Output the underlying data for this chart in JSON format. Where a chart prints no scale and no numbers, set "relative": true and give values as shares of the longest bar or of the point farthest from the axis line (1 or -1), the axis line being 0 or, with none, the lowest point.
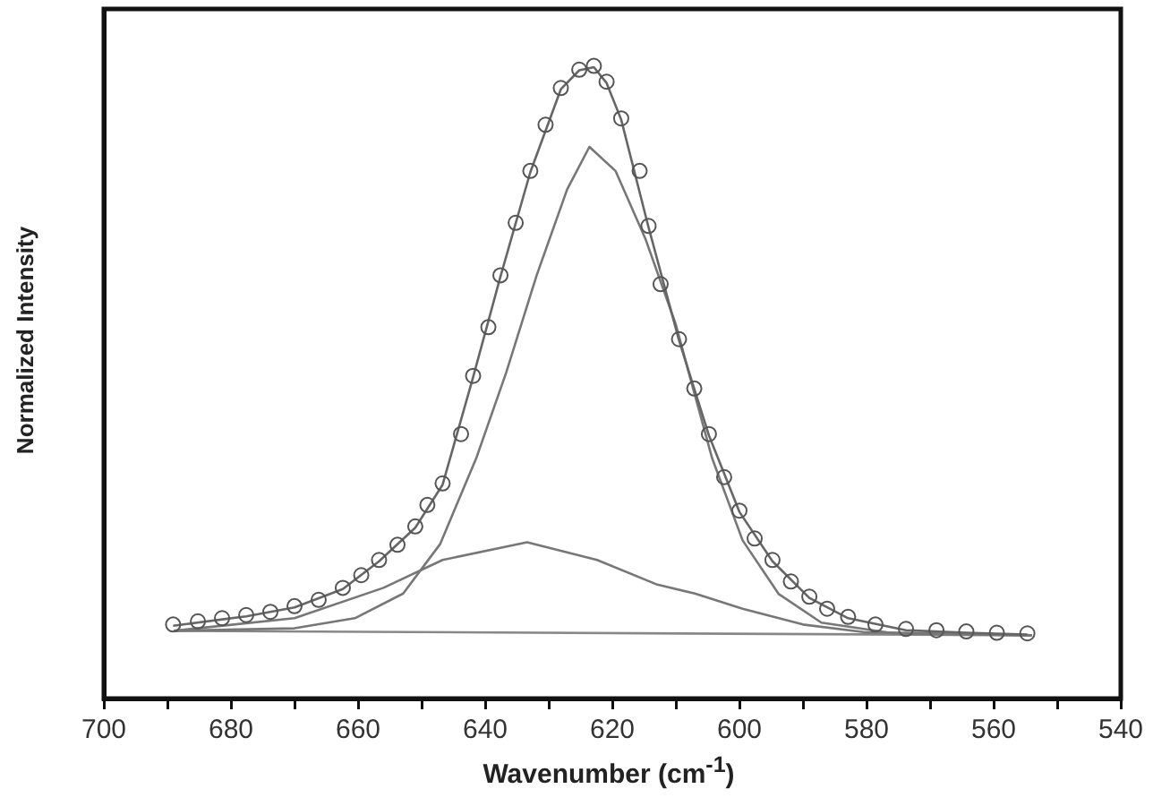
{
  "chart_data": {
    "type": "scatter",
    "xlabel": "Wavenumber (cm$^{-1}$)",
    "ylabel": "Normalized Intensity",
    "relative": true,
    "legend": false,
    "grid": false,
    "xlim": [
      700,
      540
    ],
    "xticks": [
      700,
      {
        "value": 690,
        "label": null
      },
      680,
      {
        "value": 670,
        "label": null
      },
      660,
      {
        "value": 650,
        "label": null
      },
      640,
      {
        "value": 630,
        "label": null
      },
      620,
      {
        "value": 610,
        "label": null
      },
      600,
      {
        "value": 590,
        "label": null
      },
      580,
      {
        "value": 570,
        "label": null
      },
      560,
      {
        "value": 550,
        "label": null
      },
      540
    ],
    "series": [
      {
        "marker": "circle",
        "color": "#555555",
        "x": [
          689.1,
          685.2,
          681.4,
          677.6,
          673.8,
          670.0,
          666.2,
          662.4,
          659.5,
          656.7,
          653.8,
          651.0,
          649.1,
          646.7,
          643.8,
          641.9,
          639.5,
          637.6,
          635.2,
          632.9,
          630.5,
          628.1,
          625.2,
          622.9,
          620.9,
          618.6,
          615.7,
          614.3,
          612.4,
          609.5,
          607.1,
          604.8,
          602.4,
          600.0,
          597.6,
          594.8,
          591.9,
          589.0,
          586.2,
          582.9,
          578.6,
          573.8,
          569.0,
          564.3,
          559.5,
          554.7
        ],
        "values": [
          0.117,
          0.122,
          0.127,
          0.132,
          0.137,
          0.146,
          0.156,
          0.175,
          0.195,
          0.219,
          0.243,
          0.272,
          0.306,
          0.34,
          0.418,
          0.51,
          0.587,
          0.669,
          0.752,
          0.834,
          0.907,
          0.965,
          0.994,
          1.0,
          0.975,
          0.917,
          0.834,
          0.747,
          0.655,
          0.568,
          0.49,
          0.418,
          0.35,
          0.297,
          0.253,
          0.219,
          0.185,
          0.161,
          0.142,
          0.129,
          0.117,
          0.11,
          0.108,
          0.106,
          0.104,
          0.103
        ]
      },
      {
        "type": "line",
        "marker": "none",
        "line_style": "solid",
        "color": "#666666",
        "x": [
          689.1,
          677.6,
          670.0,
          662.4,
          656.7,
          651.0,
          646.7,
          641.9,
          637.6,
          632.9,
          628.1,
          625.2,
          622.9,
          620.9,
          618.6,
          614.3,
          609.5,
          604.8,
          600.0,
          594.8,
          589.0,
          582.9,
          573.8,
          564.3,
          554.7
        ],
        "values": [
          0.115,
          0.13,
          0.144,
          0.173,
          0.217,
          0.27,
          0.338,
          0.508,
          0.667,
          0.832,
          0.963,
          0.993,
          0.998,
          0.973,
          0.915,
          0.745,
          0.566,
          0.416,
          0.295,
          0.217,
          0.159,
          0.127,
          0.108,
          0.104,
          0.101
        ]
      },
      {
        "type": "line",
        "marker": "none",
        "line_style": "solid",
        "color": "#777777",
        "x": [
          689,
          670,
          660.5,
          652.9,
          647.1,
          641.4,
          636.7,
          631.9,
          627.1,
          623.6,
          619.5,
          614.8,
          610.0,
          608.1,
          604.3,
          599.5,
          593.8,
          587.1,
          575.7,
          554
        ],
        "values": [
          0.107,
          0.111,
          0.127,
          0.166,
          0.244,
          0.38,
          0.515,
          0.669,
          0.805,
          0.872,
          0.834,
          0.727,
          0.591,
          0.52,
          0.38,
          0.25,
          0.165,
          0.12,
          0.103,
          0.1
        ]
      },
      {
        "type": "line",
        "marker": "none",
        "line_style": "solid",
        "color": "#777777",
        "x": [
          689,
          670,
          656,
          646.7,
          633.4,
          622.4,
          612.9,
          607,
          599.5,
          590,
          580.5,
          554
        ],
        "values": [
          0.107,
          0.127,
          0.175,
          0.219,
          0.247,
          0.219,
          0.18,
          0.166,
          0.142,
          0.117,
          0.105,
          0.1
        ]
      },
      {
        "type": "line",
        "marker": "none",
        "line_style": "solid",
        "color": "#888888",
        "x": [
          689,
          554
        ],
        "values": [
          0.107,
          0.1
        ]
      }
    ]
  }
}
